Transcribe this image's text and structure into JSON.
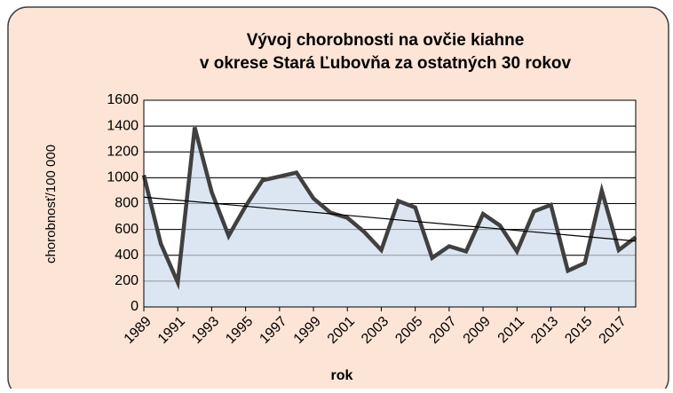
{
  "chart_data": {
    "type": "area",
    "title": [
      "Vývoj chorobnosti na ovčie kiahne",
      "v okrese Stará Ľubovňa za ostatných 30 rokov"
    ],
    "x_label": "rok",
    "y_label": "chorobnosť/100 000",
    "x": [
      1989,
      1990,
      1991,
      1992,
      1993,
      1994,
      1995,
      1996,
      1997,
      1998,
      1999,
      2000,
      2001,
      2002,
      2003,
      2004,
      2005,
      2006,
      2007,
      2008,
      2009,
      2010,
      2011,
      2012,
      2013,
      2014,
      2015,
      2016,
      2017,
      2018
    ],
    "series": [
      {
        "color": "#404040",
        "fill": "#dce6f2",
        "values": [
          1020,
          490,
          190,
          1390,
          890,
          550,
          780,
          980,
          1010,
          1040,
          840,
          730,
          690,
          580,
          440,
          820,
          770,
          380,
          470,
          430,
          720,
          630,
          430,
          740,
          790,
          280,
          340,
          900,
          440,
          540
        ]
      }
    ],
    "trend_line": [
      850,
      510
    ],
    "xlim": [
      1989,
      2018
    ],
    "xticks": [
      1989,
      1991,
      1993,
      1995,
      1997,
      1999,
      2001,
      2003,
      2005,
      2007,
      2009,
      2011,
      2013,
      2015,
      2017
    ],
    "ylim": [
      0,
      1600
    ],
    "yticks": [
      0,
      200,
      400,
      600,
      800,
      1000,
      1200,
      1400,
      1600
    ],
    "grid": true
  }
}
